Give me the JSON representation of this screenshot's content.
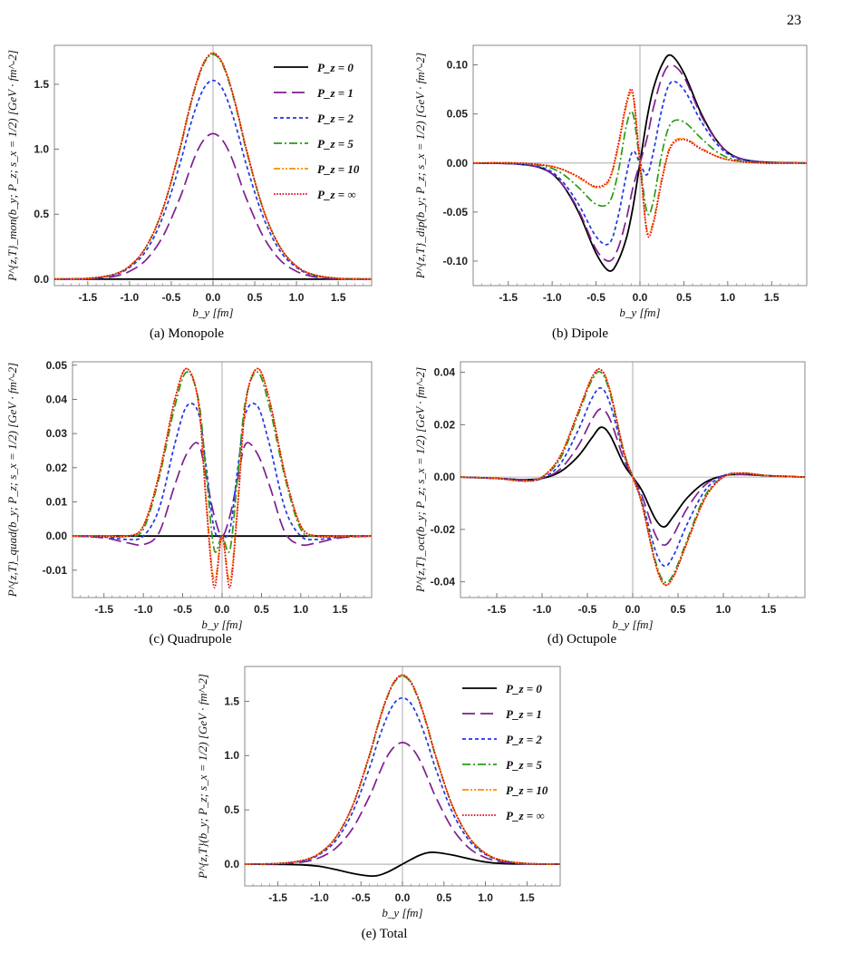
{
  "page_number": "23",
  "colors": {
    "P0": "#000000",
    "P1": "#7f1f8f",
    "P2": "#2235e6",
    "P5": "#2a9a1a",
    "P10": "#ff8c00",
    "Pinf": "#e0001b",
    "frame": "#888888",
    "zero_line": "#9a9a9a"
  },
  "line_styles": {
    "P0": "solid",
    "P1": "long-dash",
    "P2": "short-dash",
    "P5": "dash-dot",
    "P10": "dash-dot-dot",
    "Pinf": "dotted"
  },
  "legend_labels": [
    "P_z = 0",
    "P_z = 1",
    "P_z = 2",
    "P_z = 5",
    "P_z = 10",
    "P_z = ∞"
  ],
  "chart_data": [
    {
      "id": "monopole",
      "type": "line",
      "caption": "(a) Monopole",
      "xlabel": "b_y [fm]",
      "ylabel": "P^{z,T}_mon(b_y; P_z; s_x = 1/2) [GeV · fm^-2]",
      "xlim": [
        -1.9,
        1.9
      ],
      "ylim": [
        -0.05,
        1.8
      ],
      "xticks": [
        "-1.5",
        "-1.0",
        "-0.5",
        "0.0",
        "0.5",
        "1.0",
        "1.5"
      ],
      "yticks": [
        "0.0",
        "0.5",
        "1.0",
        "1.5"
      ],
      "legend": "top-right",
      "x": [
        -1.9,
        -1.5,
        -1.2,
        -1.0,
        -0.8,
        -0.6,
        -0.4,
        -0.3,
        -0.2,
        -0.1,
        0.0,
        0.1,
        0.2,
        0.3,
        0.4,
        0.6,
        0.8,
        1.0,
        1.2,
        1.5,
        1.9
      ],
      "series": [
        {
          "name": "P_z = 0",
          "values": [
            0,
            0,
            0,
            0,
            0,
            0,
            0,
            0,
            0,
            0,
            0,
            0,
            0,
            0,
            0,
            0,
            0,
            0,
            0,
            0,
            0
          ]
        },
        {
          "name": "P_z = 1",
          "values": [
            0,
            0.003,
            0.02,
            0.06,
            0.15,
            0.33,
            0.62,
            0.8,
            0.97,
            1.08,
            1.12,
            1.08,
            0.97,
            0.8,
            0.62,
            0.33,
            0.15,
            0.06,
            0.02,
            0.003,
            0
          ]
        },
        {
          "name": "P_z = 2",
          "values": [
            0,
            0.005,
            0.03,
            0.09,
            0.22,
            0.48,
            0.88,
            1.12,
            1.33,
            1.48,
            1.53,
            1.48,
            1.33,
            1.12,
            0.88,
            0.48,
            0.22,
            0.09,
            0.03,
            0.005,
            0
          ]
        },
        {
          "name": "P_z = 5",
          "values": [
            0,
            0.006,
            0.035,
            0.1,
            0.25,
            0.54,
            0.99,
            1.26,
            1.5,
            1.67,
            1.73,
            1.67,
            1.5,
            1.26,
            0.99,
            0.54,
            0.25,
            0.1,
            0.035,
            0.006,
            0
          ]
        },
        {
          "name": "P_z = 10",
          "values": [
            0,
            0.006,
            0.035,
            0.1,
            0.25,
            0.54,
            1.0,
            1.27,
            1.51,
            1.68,
            1.74,
            1.68,
            1.51,
            1.27,
            1.0,
            0.54,
            0.25,
            0.1,
            0.035,
            0.006,
            0
          ]
        },
        {
          "name": "P_z = ∞",
          "values": [
            0,
            0.006,
            0.035,
            0.1,
            0.25,
            0.54,
            1.0,
            1.27,
            1.51,
            1.68,
            1.74,
            1.68,
            1.51,
            1.27,
            1.0,
            0.54,
            0.25,
            0.1,
            0.035,
            0.006,
            0
          ]
        }
      ]
    },
    {
      "id": "dipole",
      "type": "line",
      "caption": "(b) Dipole",
      "xlabel": "b_y [fm]",
      "ylabel": "P^{z,T}_dip(b_y; P_z; s_x = 1/2) [GeV · fm^-2]",
      "xlim": [
        -1.9,
        1.9
      ],
      "ylim": [
        -0.125,
        0.12
      ],
      "xticks": [
        "-1.5",
        "-1.0",
        "-0.5",
        "0.0",
        "0.5",
        "1.0",
        "1.5"
      ],
      "yticks": [
        "-0.10",
        "-0.05",
        "0.00",
        "0.05",
        "0.10"
      ],
      "legend": "none",
      "x": [
        -1.9,
        -1.4,
        -1.1,
        -0.9,
        -0.7,
        -0.5,
        -0.35,
        -0.25,
        -0.15,
        -0.08,
        0.0,
        0.08,
        0.15,
        0.25,
        0.35,
        0.5,
        0.7,
        0.9,
        1.1,
        1.4,
        1.9
      ],
      "series": [
        {
          "name": "P_z = 0",
          "values": [
            0,
            -0.001,
            -0.006,
            -0.02,
            -0.05,
            -0.092,
            -0.11,
            -0.1,
            -0.075,
            -0.045,
            0,
            0.045,
            0.075,
            0.1,
            0.11,
            0.092,
            0.05,
            0.02,
            0.006,
            0.001,
            0
          ]
        },
        {
          "name": "P_z = 1",
          "values": [
            0,
            -0.001,
            -0.006,
            -0.02,
            -0.048,
            -0.088,
            -0.1,
            -0.087,
            -0.055,
            -0.025,
            0,
            0.025,
            0.055,
            0.087,
            0.1,
            0.088,
            0.048,
            0.02,
            0.006,
            0.001,
            0
          ]
        },
        {
          "name": "P_z = 2",
          "values": [
            0,
            -0.001,
            -0.005,
            -0.017,
            -0.042,
            -0.075,
            -0.082,
            -0.055,
            -0.01,
            0.012,
            0,
            -0.012,
            0.01,
            0.055,
            0.082,
            0.075,
            0.042,
            0.017,
            0.005,
            0.001,
            0
          ]
        },
        {
          "name": "P_z = 5",
          "values": [
            0,
            0,
            -0.003,
            -0.01,
            -0.025,
            -0.042,
            -0.04,
            -0.01,
            0.04,
            0.05,
            0,
            -0.05,
            -0.04,
            0.01,
            0.04,
            0.042,
            0.025,
            0.01,
            0.003,
            0,
            0
          ]
        },
        {
          "name": "P_z = 10",
          "values": [
            0,
            0,
            -0.002,
            -0.006,
            -0.015,
            -0.025,
            -0.018,
            0.015,
            0.06,
            0.068,
            0,
            -0.068,
            -0.06,
            -0.015,
            0.018,
            0.025,
            0.015,
            0.006,
            0.002,
            0,
            0
          ]
        },
        {
          "name": "P_z = ∞",
          "values": [
            0,
            0,
            -0.002,
            -0.006,
            -0.014,
            -0.024,
            -0.016,
            0.018,
            0.063,
            0.071,
            0,
            -0.071,
            -0.063,
            -0.018,
            0.016,
            0.024,
            0.014,
            0.006,
            0.002,
            0,
            0
          ]
        }
      ]
    },
    {
      "id": "quadrupole",
      "type": "line",
      "caption": "(c) Quadrupole",
      "xlabel": "b_y [fm]",
      "ylabel": "P^{z,T}_quad(b_y; P_z; s_x = 1/2) [GeV · fm^-2]",
      "xlim": [
        -1.9,
        1.9
      ],
      "ylim": [
        -0.018,
        0.051
      ],
      "xticks": [
        "-1.5",
        "-1.0",
        "-0.5",
        "0.0",
        "0.5",
        "1.0",
        "1.5"
      ],
      "yticks": [
        "-0.01",
        "0.00",
        "0.01",
        "0.02",
        "0.03",
        "0.04",
        "0.05"
      ],
      "legend": "none",
      "x": [
        -1.9,
        -1.5,
        -1.2,
        -1.0,
        -0.8,
        -0.6,
        -0.45,
        -0.3,
        -0.2,
        -0.1,
        0.0,
        0.1,
        0.2,
        0.3,
        0.45,
        0.6,
        0.8,
        1.0,
        1.2,
        1.5,
        1.9
      ],
      "series": [
        {
          "name": "P_z = 0",
          "values": [
            0,
            0,
            0,
            0,
            0,
            0,
            0,
            0,
            0,
            0,
            0,
            0,
            0,
            0,
            0,
            0,
            0,
            0,
            0,
            0,
            0
          ]
        },
        {
          "name": "P_z = 1",
          "values": [
            0,
            -0.0005,
            -0.002,
            -0.0025,
            0.001,
            0.015,
            0.024,
            0.027,
            0.017,
            0.006,
            0,
            0.006,
            0.017,
            0.027,
            0.024,
            0.015,
            0.001,
            -0.0025,
            -0.002,
            -0.0005,
            0
          ]
        },
        {
          "name": "P_z = 2",
          "values": [
            0,
            -0.0003,
            -0.001,
            0,
            0.008,
            0.027,
            0.038,
            0.036,
            0.02,
            0.002,
            0,
            0.002,
            0.02,
            0.036,
            0.038,
            0.027,
            0.008,
            0,
            -0.001,
            -0.0003,
            0
          ]
        },
        {
          "name": "P_z = 5",
          "values": [
            0,
            0,
            0,
            0.002,
            0.017,
            0.038,
            0.048,
            0.04,
            0.018,
            -0.004,
            0,
            -0.004,
            0.018,
            0.04,
            0.048,
            0.038,
            0.017,
            0.002,
            0,
            0,
            0
          ]
        },
        {
          "name": "P_z = 10",
          "values": [
            0,
            0,
            0,
            0.003,
            0.018,
            0.04,
            0.049,
            0.039,
            0.01,
            -0.013,
            0,
            -0.013,
            0.01,
            0.039,
            0.049,
            0.04,
            0.018,
            0.003,
            0,
            0,
            0
          ]
        },
        {
          "name": "P_z = ∞",
          "values": [
            0,
            0,
            0,
            0.003,
            0.018,
            0.04,
            0.049,
            0.039,
            0.009,
            -0.015,
            0,
            -0.015,
            0.009,
            0.039,
            0.049,
            0.04,
            0.018,
            0.003,
            0,
            0,
            0
          ]
        }
      ]
    },
    {
      "id": "octupole",
      "type": "line",
      "caption": "(d) Octupole",
      "xlabel": "b_y [fm]",
      "ylabel": "P^{z,T}_oct(b_y; P_z; s_x = 1/2) [GeV · fm^-2]",
      "xlim": [
        -1.9,
        1.9
      ],
      "ylim": [
        -0.046,
        0.044
      ],
      "xticks": [
        "-1.5",
        "-1.0",
        "-0.5",
        "0.0",
        "0.5",
        "1.0",
        "1.5"
      ],
      "yticks": [
        "-0.04",
        "-0.02",
        "0.00",
        "0.02",
        "0.04"
      ],
      "legend": "none",
      "x": [
        -1.9,
        -1.5,
        -1.2,
        -1.0,
        -0.8,
        -0.6,
        -0.45,
        -0.35,
        -0.25,
        -0.1,
        0.0,
        0.1,
        0.25,
        0.35,
        0.45,
        0.6,
        0.8,
        1.0,
        1.2,
        1.5,
        1.9
      ],
      "series": [
        {
          "name": "P_z = 0",
          "values": [
            0,
            -0.0005,
            -0.001,
            -0.0005,
            0.002,
            0.008,
            0.015,
            0.019,
            0.016,
            0.005,
            0,
            -0.005,
            -0.016,
            -0.019,
            -0.015,
            -0.008,
            -0.002,
            0.0005,
            0.001,
            0.0005,
            0
          ]
        },
        {
          "name": "P_z = 1",
          "values": [
            0,
            -0.0005,
            -0.001,
            -0.0005,
            0.003,
            0.012,
            0.022,
            0.026,
            0.022,
            0.007,
            0,
            -0.007,
            -0.022,
            -0.026,
            -0.022,
            -0.012,
            -0.003,
            0.0005,
            0.001,
            0.0005,
            0
          ]
        },
        {
          "name": "P_z = 2",
          "values": [
            0,
            -0.0005,
            -0.0015,
            -0.0005,
            0.005,
            0.018,
            0.03,
            0.034,
            0.028,
            0.009,
            0,
            -0.009,
            -0.028,
            -0.034,
            -0.03,
            -0.018,
            -0.005,
            0.0005,
            0.0015,
            0.0005,
            0
          ]
        },
        {
          "name": "P_z = 5",
          "values": [
            0,
            -0.0005,
            -0.0015,
            0,
            0.007,
            0.024,
            0.037,
            0.04,
            0.032,
            0.01,
            0,
            -0.01,
            -0.032,
            -0.04,
            -0.037,
            -0.024,
            -0.007,
            0,
            0.0015,
            0.0005,
            0
          ]
        },
        {
          "name": "P_z = 10",
          "values": [
            0,
            -0.0005,
            -0.0015,
            0,
            0.008,
            0.025,
            0.038,
            0.041,
            0.033,
            0.01,
            0,
            -0.01,
            -0.033,
            -0.041,
            -0.038,
            -0.025,
            -0.008,
            0,
            0.0015,
            0.0005,
            0
          ]
        },
        {
          "name": "P_z = ∞",
          "values": [
            0,
            -0.0005,
            -0.0015,
            0,
            0.008,
            0.025,
            0.038,
            0.041,
            0.033,
            0.01,
            0,
            -0.01,
            -0.033,
            -0.041,
            -0.038,
            -0.025,
            -0.008,
            0,
            0.0015,
            0.0005,
            0
          ]
        }
      ]
    },
    {
      "id": "total",
      "type": "line",
      "caption": "(e) Total",
      "xlabel": "b_y [fm]",
      "ylabel": "P^{z,T}(b_y; P_z; s_x = 1/2) [GeV · fm^-2]",
      "xlim": [
        -1.9,
        1.9
      ],
      "ylim": [
        -0.2,
        1.82
      ],
      "xticks": [
        "-1.5",
        "-1.0",
        "-0.5",
        "0.0",
        "0.5",
        "1.0",
        "1.5"
      ],
      "yticks": [
        "0.0",
        "0.5",
        "1.0",
        "1.5"
      ],
      "legend": "top-right",
      "x": [
        -1.9,
        -1.5,
        -1.2,
        -1.0,
        -0.8,
        -0.6,
        -0.4,
        -0.3,
        -0.2,
        -0.1,
        0.0,
        0.1,
        0.2,
        0.3,
        0.4,
        0.6,
        0.8,
        1.0,
        1.2,
        1.5,
        1.9
      ],
      "series": [
        {
          "name": "P_z = 0",
          "values": [
            0,
            -0.001,
            -0.006,
            -0.02,
            -0.05,
            -0.085,
            -0.108,
            -0.105,
            -0.08,
            -0.042,
            0,
            0.042,
            0.08,
            0.105,
            0.108,
            0.085,
            0.05,
            0.02,
            0.006,
            0.001,
            0
          ]
        },
        {
          "name": "P_z = 1",
          "values": [
            0,
            0.003,
            0.02,
            0.06,
            0.15,
            0.33,
            0.62,
            0.8,
            0.97,
            1.08,
            1.12,
            1.08,
            0.97,
            0.8,
            0.62,
            0.33,
            0.15,
            0.06,
            0.02,
            0.003,
            0
          ]
        },
        {
          "name": "P_z = 2",
          "values": [
            0,
            0.005,
            0.03,
            0.09,
            0.22,
            0.48,
            0.88,
            1.12,
            1.33,
            1.48,
            1.53,
            1.48,
            1.33,
            1.12,
            0.88,
            0.48,
            0.22,
            0.09,
            0.03,
            0.005,
            0
          ]
        },
        {
          "name": "P_z = 5",
          "values": [
            0,
            0.006,
            0.035,
            0.1,
            0.25,
            0.54,
            0.99,
            1.26,
            1.5,
            1.67,
            1.73,
            1.67,
            1.5,
            1.26,
            0.99,
            0.54,
            0.25,
            0.1,
            0.035,
            0.006,
            0
          ]
        },
        {
          "name": "P_z = 10",
          "values": [
            0,
            0.006,
            0.035,
            0.1,
            0.25,
            0.54,
            1.0,
            1.27,
            1.51,
            1.68,
            1.74,
            1.68,
            1.51,
            1.27,
            1.0,
            0.54,
            0.25,
            0.1,
            0.035,
            0.006,
            0
          ]
        },
        {
          "name": "P_z = ∞",
          "values": [
            0,
            0.006,
            0.035,
            0.1,
            0.25,
            0.54,
            1.0,
            1.27,
            1.51,
            1.68,
            1.74,
            1.68,
            1.51,
            1.27,
            1.0,
            0.54,
            0.25,
            0.1,
            0.035,
            0.006,
            0
          ]
        }
      ]
    }
  ]
}
